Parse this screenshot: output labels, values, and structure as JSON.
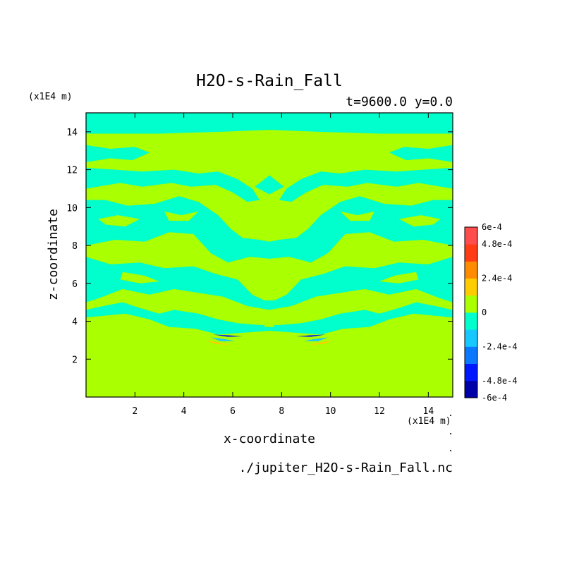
{
  "chart_data": {
    "type": "heatmap",
    "title": "H2O-s-Rain_Fall",
    "subtitle": "t=9600.0 y=0.0",
    "xlabel": "x-coordinate",
    "ylabel": "z-coordinate",
    "x_unit": "(x1E4 m)",
    "y_unit": "(x1E4 m)",
    "source_file": "./jupiter_H2O-s-Rain_Fall.nc",
    "xlim": [
      0.0,
      15.0
    ],
    "ylim": [
      0.0,
      15.0
    ],
    "x_ticks": [
      "2",
      "4",
      "6",
      "8",
      "10",
      "12",
      "14"
    ],
    "y_ticks": [
      "2",
      "4",
      "6",
      "8",
      "10",
      "12",
      "14"
    ],
    "colorbar": {
      "levels": [
        -0.0006,
        -0.00048,
        -0.00036,
        -0.00024,
        -0.00012,
        0,
        0.00012,
        0.00024,
        0.00036,
        0.00048,
        0.0006
      ],
      "colors": [
        "#0000a8",
        "#0018ff",
        "#0a78ff",
        "#16c8ff",
        "#00ffcc",
        "#aaff00",
        "#ffcc00",
        "#ff8c00",
        "#ff3c14",
        "#ff4c4c"
      ],
      "labels": [
        "6e-4",
        "4.8e-4",
        "2.4e-4",
        "0",
        "-2.4e-4",
        "-4.8e-4",
        "-6e-4"
      ]
    },
    "field_description": "Mirror-symmetric about x=7.5. Values near 0 (yellow-green) below z~4 and in bands; cyan (slightly negative) regions in upper atmosphere; small blue/orange patches near z~3 at x~5-5.5 and x~9.5-10.",
    "colors": {
      "positive_small": "#aaff00",
      "negative_small": "#00ffcc",
      "negative_mid": "#16c8ff",
      "negative_strong": "#0018ff",
      "positive_mid": "#ffcc00"
    }
  }
}
